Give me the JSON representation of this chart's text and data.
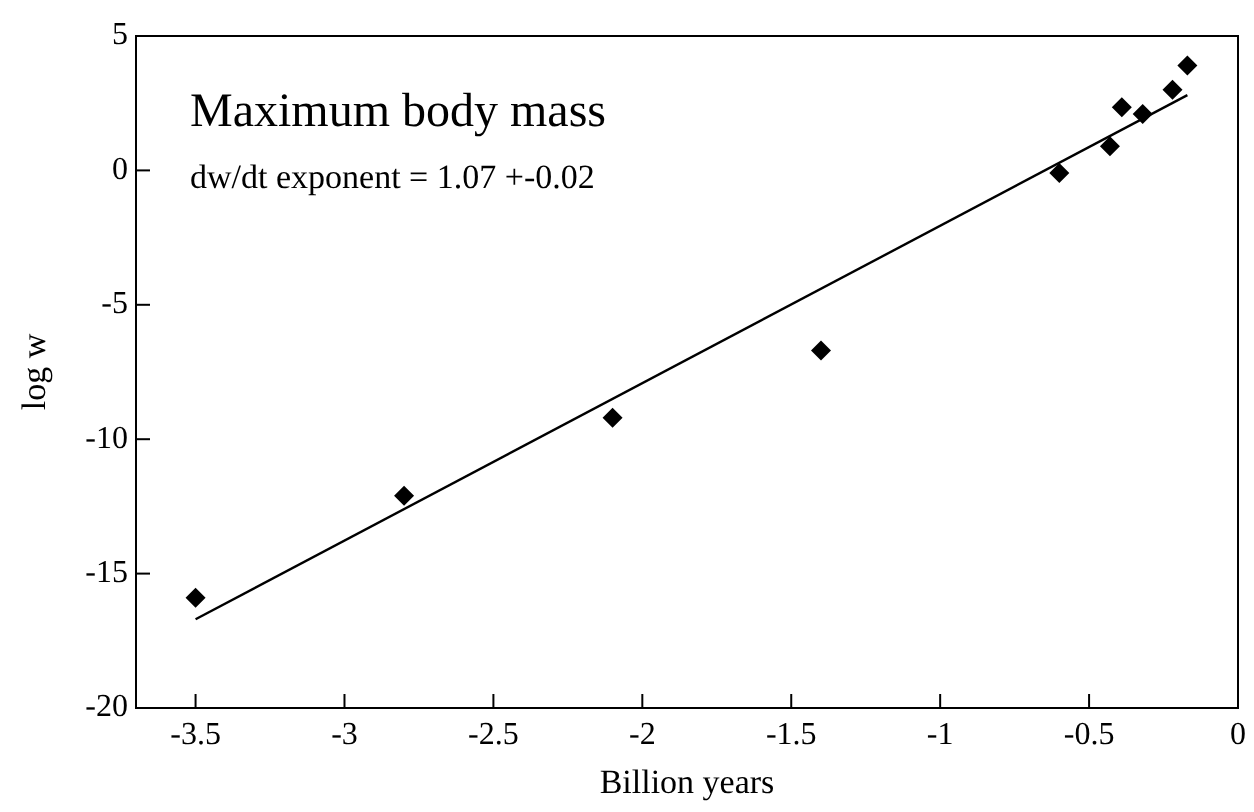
{
  "chart_data": {
    "type": "scatter",
    "title": "Maximum body mass",
    "xlabel": "Billion years",
    "ylabel": "log w",
    "annotations": [
      "dw/dt exponent = 1.07 +-0.02"
    ],
    "series": [
      {
        "color": "#000000",
        "marker": "diamond",
        "x": [
          -3.5,
          -2.8,
          -2.1,
          -1.4,
          -0.6,
          -0.43,
          -0.39,
          -0.32,
          -0.22,
          -0.17
        ],
        "values": [
          -15.9,
          -12.1,
          -9.2,
          -6.7,
          -0.1,
          0.9,
          2.35,
          2.1,
          3.0,
          3.9
        ]
      },
      {
        "type": "line",
        "color": "#000000",
        "marker": "none",
        "line_style": "solid",
        "x": [
          -3.5,
          -0.17
        ],
        "values": [
          -16.7,
          2.8
        ]
      }
    ],
    "xlim": [
      -3.7,
      0
    ],
    "xticks": [
      -3.5,
      -3,
      -2.5,
      -2,
      -1.5,
      -1,
      -0.5,
      0
    ],
    "ylim": [
      -20,
      5
    ],
    "yticks": [
      -20,
      -15,
      -10,
      -5,
      0,
      5
    ],
    "grid": false,
    "legend": false
  }
}
